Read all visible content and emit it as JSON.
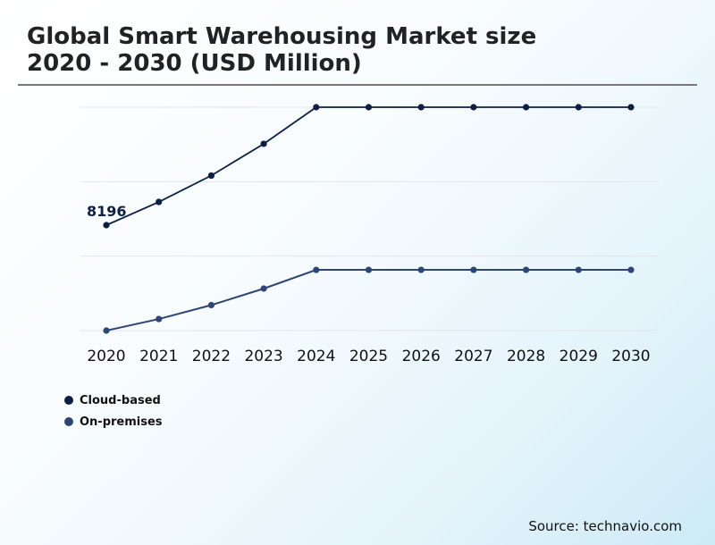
{
  "title_line1": "Global Smart Warehousing Market size",
  "title_line2": "2020 - 2030 (USD Million)",
  "source": "Source: technavio.com",
  "chart_data": {
    "type": "line",
    "title": "Global Smart Warehousing Market size 2020 - 2030 (USD Million)",
    "categories": [
      "2020",
      "2021",
      "2022",
      "2023",
      "2024",
      "2025",
      "2026",
      "2027",
      "2028",
      "2029",
      "2030"
    ],
    "series": [
      {
        "name": "Cloud-based",
        "color": "#0d1f45",
        "values": [
          8196,
          10000,
          12050,
          14520,
          17365,
          17365,
          17365,
          17365,
          17365,
          17365,
          17365
        ]
      },
      {
        "name": "On-premises",
        "color": "#2e4577",
        "values": [
          0,
          900,
          1980,
          3265,
          4720,
          4720,
          4720,
          4720,
          4720,
          4720,
          4720
        ]
      }
    ],
    "data_labels": [
      {
        "series": "Cloud-based",
        "category": "2020",
        "text": "8196"
      }
    ],
    "ylim": [
      0,
      17365
    ],
    "y_axis_labels_shown": false,
    "grid": true,
    "legend": "bottom-left"
  }
}
